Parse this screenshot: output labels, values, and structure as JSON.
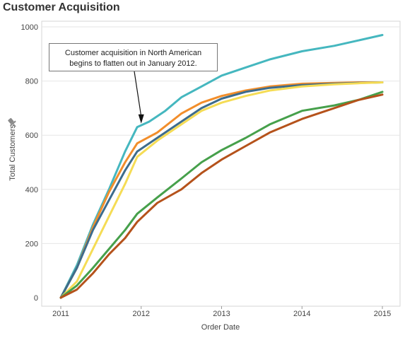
{
  "chart_data": {
    "type": "line",
    "title": "Customer Acquisition",
    "xlabel": "Order Date",
    "ylabel": "Total Customers",
    "ylim": [
      0,
      1000
    ],
    "xlim": [
      2011,
      2015
    ],
    "x_ticks": [
      2011,
      2012,
      2013,
      2014,
      2015
    ],
    "y_ticks": [
      0,
      200,
      400,
      600,
      800,
      1000
    ],
    "grid": true,
    "annotation": {
      "text_line1": "Customer acquisition in North American",
      "text_line2": "begins to flatten out in January 2012.",
      "points_to": {
        "x": 2012.0,
        "y": 630
      }
    },
    "series": [
      {
        "color": "#45b7bf",
        "x": [
          2011.0,
          2011.2,
          2011.4,
          2011.6,
          2011.8,
          2011.95,
          2012.1,
          2012.3,
          2012.5,
          2012.75,
          2013.0,
          2013.3,
          2013.6,
          2014.0,
          2014.4,
          2014.7,
          2015.0
        ],
        "y": [
          0,
          120,
          270,
          400,
          540,
          630,
          650,
          690,
          740,
          780,
          820,
          850,
          880,
          910,
          930,
          950,
          970
        ]
      },
      {
        "color": "#f28e2b",
        "x": [
          2011.0,
          2011.2,
          2011.4,
          2011.6,
          2011.8,
          2011.95,
          2012.2,
          2012.5,
          2012.75,
          2013.0,
          2013.3,
          2013.6,
          2014.0,
          2014.4,
          2014.7,
          2015.0
        ],
        "y": [
          0,
          110,
          260,
          390,
          500,
          570,
          610,
          680,
          720,
          745,
          765,
          780,
          790,
          793,
          795,
          795
        ]
      },
      {
        "color": "#3d6c8c",
        "x": [
          2011.0,
          2011.2,
          2011.4,
          2011.6,
          2011.8,
          2011.95,
          2012.2,
          2012.5,
          2012.75,
          2013.0,
          2013.3,
          2013.6,
          2014.0,
          2014.4,
          2014.7,
          2015.0
        ],
        "y": [
          0,
          110,
          250,
          360,
          470,
          540,
          590,
          650,
          700,
          735,
          760,
          775,
          785,
          790,
          793,
          795
        ]
      },
      {
        "color": "#f5dc55",
        "x": [
          2011.0,
          2011.2,
          2011.4,
          2011.6,
          2011.8,
          2011.95,
          2012.2,
          2012.5,
          2012.75,
          2013.0,
          2013.3,
          2013.6,
          2014.0,
          2014.4,
          2014.7,
          2015.0
        ],
        "y": [
          0,
          60,
          180,
          300,
          420,
          520,
          580,
          640,
          690,
          720,
          745,
          765,
          780,
          788,
          792,
          795
        ]
      },
      {
        "color": "#46a04b",
        "x": [
          2011.0,
          2011.2,
          2011.4,
          2011.6,
          2011.8,
          2011.95,
          2012.2,
          2012.5,
          2012.75,
          2013.0,
          2013.3,
          2013.6,
          2014.0,
          2014.4,
          2014.7,
          2015.0
        ],
        "y": [
          0,
          45,
          110,
          180,
          250,
          310,
          370,
          440,
          500,
          545,
          590,
          640,
          690,
          710,
          730,
          760
        ]
      },
      {
        "color": "#b5521b",
        "x": [
          2011.0,
          2011.2,
          2011.4,
          2011.6,
          2011.8,
          2011.95,
          2012.2,
          2012.5,
          2012.75,
          2013.0,
          2013.3,
          2013.6,
          2014.0,
          2014.4,
          2014.7,
          2015.0
        ],
        "y": [
          0,
          30,
          90,
          160,
          220,
          280,
          350,
          400,
          460,
          510,
          560,
          610,
          660,
          700,
          730,
          750
        ]
      }
    ]
  }
}
